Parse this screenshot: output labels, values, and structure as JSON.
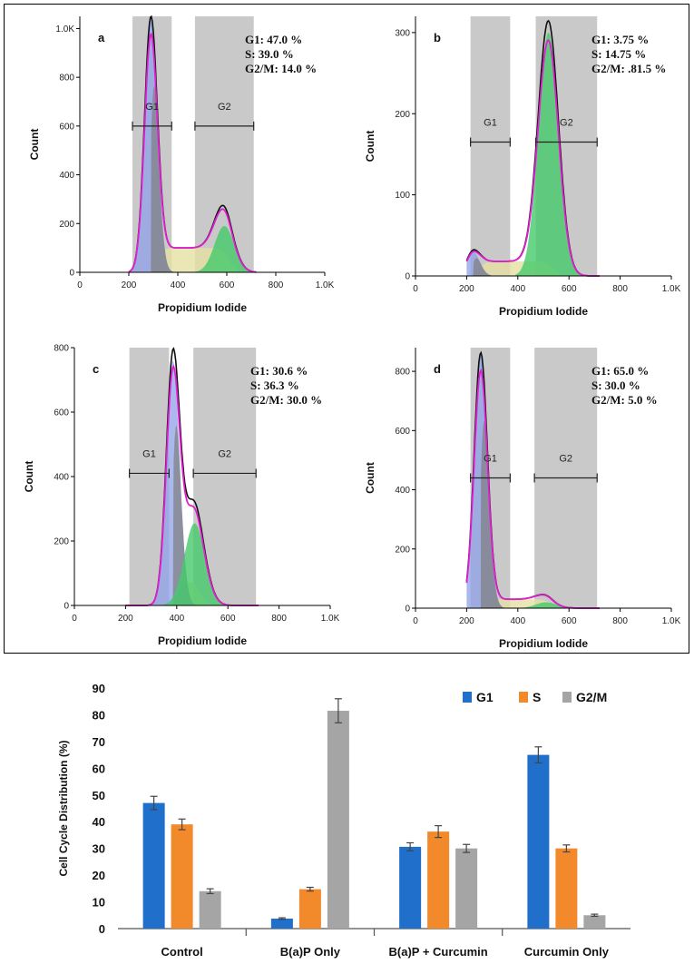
{
  "chart_data": [
    {
      "type": "histogram",
      "panel": "a",
      "xlabel": "Propidium Iodide",
      "ylabel": "Count",
      "xlim": [
        0,
        1000
      ],
      "ylim": [
        0,
        1050
      ],
      "x_ticks": [
        "0",
        "200",
        "400",
        "600",
        "800",
        "1.0K"
      ],
      "y_ticks": [
        {
          "v": 0,
          "label": "0"
        },
        {
          "v": 200,
          "label": "200"
        },
        {
          "v": 400,
          "label": "400"
        },
        {
          "v": 600,
          "label": "600"
        },
        {
          "v": 800,
          "label": "800"
        },
        {
          "v": 1000,
          "label": "1.0K"
        }
      ],
      "gates": [
        {
          "label": "G1",
          "start": 215,
          "end": 375
        },
        {
          "label": "G2",
          "start": 470,
          "end": 710
        }
      ],
      "gate_bar_y": 600,
      "stats": [
        "G1: 47.0 %",
        "S: 39.0 %",
        "G2/M: 14.0 %"
      ],
      "peaks": {
        "g1_center": 290,
        "g1_height": 1040,
        "g2_center": 590,
        "g2_height": 190,
        "s_level": 100
      }
    },
    {
      "type": "histogram",
      "panel": "b",
      "xlabel": "Propidium Iodide",
      "ylabel": "Count",
      "xlim": [
        0,
        1000
      ],
      "ylim": [
        0,
        320
      ],
      "x_ticks": [
        "0",
        "200",
        "400",
        "600",
        "800",
        "1.0K"
      ],
      "y_ticks": [
        {
          "v": 0,
          "label": "0"
        },
        {
          "v": 100,
          "label": "100"
        },
        {
          "v": 200,
          "label": "200"
        },
        {
          "v": 300,
          "label": "300"
        }
      ],
      "gates": [
        {
          "label": "G1",
          "start": 215,
          "end": 370
        },
        {
          "label": "G2",
          "start": 470,
          "end": 710
        }
      ],
      "gate_bar_y": 165,
      "stats": [
        "G1: 3.75 %",
        "S: 14.75 %",
        "G2/M: .81.5 %"
      ],
      "peaks": {
        "g1_center": 225,
        "g1_height": 30,
        "g2_center": 520,
        "g2_height": 300,
        "s_level": 18
      }
    },
    {
      "type": "histogram",
      "panel": "c",
      "xlabel": "Propidium Iodide",
      "ylabel": "Count",
      "xlim": [
        0,
        1000
      ],
      "ylim": [
        0,
        800
      ],
      "x_ticks": [
        "0",
        "200",
        "400",
        "600",
        "800",
        "1.0K"
      ],
      "y_ticks": [
        {
          "v": 0,
          "label": "0"
        },
        {
          "v": 200,
          "label": "200"
        },
        {
          "v": 400,
          "label": "400"
        },
        {
          "v": 600,
          "label": "600"
        },
        {
          "v": 800,
          "label": "800"
        }
      ],
      "gates": [
        {
          "label": "G1",
          "start": 215,
          "end": 370
        },
        {
          "label": "G2",
          "start": 465,
          "end": 710
        }
      ],
      "gate_bar_y": 410,
      "stats": [
        "G1: 30.6 %",
        "S: 36.3 %",
        "G2/M: 30.0 %"
      ],
      "peaks": {
        "g1_center": 385,
        "g1_height": 760,
        "g2_center": 470,
        "g2_height": 255,
        "s_level": 80
      }
    },
    {
      "type": "histogram",
      "panel": "d",
      "xlabel": "Propidium Iodide",
      "ylabel": "Count",
      "xlim": [
        0,
        1000
      ],
      "ylim": [
        0,
        880
      ],
      "x_ticks": [
        "0",
        "200",
        "400",
        "600",
        "800",
        "1.0K"
      ],
      "y_ticks": [
        {
          "v": 0,
          "label": "0"
        },
        {
          "v": 200,
          "label": "200"
        },
        {
          "v": 400,
          "label": "400"
        },
        {
          "v": 600,
          "label": "600"
        },
        {
          "v": 800,
          "label": "800"
        }
      ],
      "gates": [
        {
          "label": "G1",
          "start": 215,
          "end": 370
        },
        {
          "label": "G2",
          "start": 465,
          "end": 710
        }
      ],
      "gate_bar_y": 440,
      "stats": [
        "G1: 65.0 %",
        "S: 30.0 %",
        "G2/M: 5.0 %"
      ],
      "peaks": {
        "g1_center": 255,
        "g1_height": 860,
        "g2_center": 510,
        "g2_height": 20,
        "s_level": 30
      }
    },
    {
      "type": "bar",
      "ylabel": "Cell Cycle Distribution (%)",
      "ylim": [
        0,
        90
      ],
      "y_ticks": [
        0,
        10,
        20,
        30,
        40,
        50,
        60,
        70,
        80,
        90
      ],
      "categories": [
        "Control",
        "B(a)P Only",
        "B(a)P + Curcumin",
        "Curcumin Only"
      ],
      "series": [
        {
          "name": "G1",
          "color": "#1f6fcb",
          "values": [
            47.0,
            3.75,
            30.6,
            65.0
          ],
          "errors": [
            2.5,
            0.3,
            1.5,
            3.0
          ]
        },
        {
          "name": "S",
          "color": "#f28a2c",
          "values": [
            39.0,
            14.75,
            36.3,
            30.0
          ],
          "errors": [
            2.0,
            0.7,
            2.2,
            1.3
          ]
        },
        {
          "name": "G2/M",
          "color": "#a5a5a5",
          "values": [
            14.0,
            81.5,
            30.0,
            5.0
          ],
          "errors": [
            0.9,
            4.5,
            1.5,
            0.4
          ]
        }
      ],
      "legend_position": "top-right"
    }
  ]
}
